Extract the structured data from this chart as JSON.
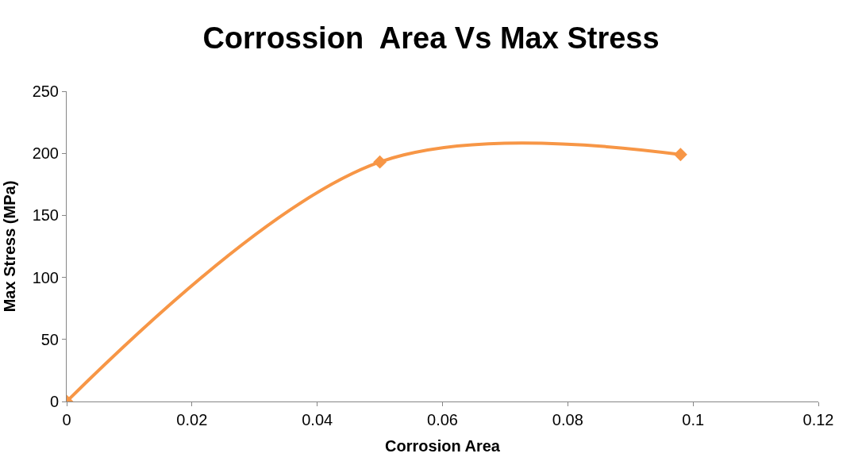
{
  "chart_data": {
    "type": "line",
    "title": "Corrossion  Area Vs Max Stress",
    "xlabel": "Corrosion Area",
    "ylabel": "Max Stress (MPa)",
    "x": [
      0,
      0.05,
      0.098
    ],
    "series": [
      {
        "color": "#f79646",
        "values": [
          0,
          193,
          199
        ]
      }
    ],
    "xlim": [
      0,
      0.12
    ],
    "xticks": [
      0,
      0.02,
      0.04,
      0.06,
      0.08,
      0.1,
      0.12
    ],
    "ylim": [
      0,
      250
    ],
    "yticks": [
      0,
      50,
      100,
      150,
      200,
      250
    ],
    "grid": false,
    "marker": "diamond",
    "line_style": "solid"
  }
}
